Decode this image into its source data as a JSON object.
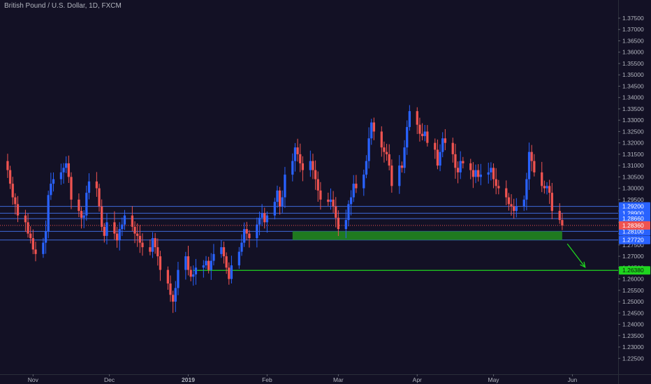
{
  "chart_data": {
    "type": "candlestick",
    "title": "British Pound / U.S. Dollar, 1D, FXCM",
    "ylim": [
      1.218,
      1.383
    ],
    "y_ticks": [
      "1.22500",
      "1.23000",
      "1.23500",
      "1.24000",
      "1.24500",
      "1.25000",
      "1.25500",
      "1.26000",
      "1.26500",
      "1.27000",
      "1.27500",
      "1.28000",
      "1.28500",
      "1.29000",
      "1.29500",
      "1.30000",
      "1.30500",
      "1.31000",
      "1.31500",
      "1.32000",
      "1.32500",
      "1.33000",
      "1.33500",
      "1.34000",
      "1.34500",
      "1.35000",
      "1.35500",
      "1.36000",
      "1.36500",
      "1.37000",
      "1.37500"
    ],
    "x_tick_labels": [
      {
        "label": "Nov",
        "date": "2018-11-01"
      },
      {
        "label": "Dec",
        "date": "2018-12-01"
      },
      {
        "label": "2019",
        "date": "2019-01-01"
      },
      {
        "label": "Feb",
        "date": "2019-02-01"
      },
      {
        "label": "Mar",
        "date": "2019-03-01"
      },
      {
        "label": "Apr",
        "date": "2019-04-01"
      },
      {
        "label": "May",
        "date": "2019-05-01"
      },
      {
        "label": "Jun",
        "date": "2019-06-01"
      }
    ],
    "x_range": [
      "2018-10-19",
      "2019-06-19"
    ],
    "grid": false,
    "series_close": [
      1.308,
      1.302,
      1.296,
      1.293,
      1.288,
      1.285,
      1.28,
      1.278,
      1.273,
      1.271,
      1.276,
      1.281,
      1.297,
      1.302,
      1.304,
      1.307,
      1.309,
      1.311,
      1.305,
      1.295,
      1.29,
      1.287,
      1.288,
      1.298,
      1.303,
      1.3,
      1.292,
      1.283,
      1.279,
      1.285,
      1.28,
      1.277,
      1.282,
      1.284,
      1.288,
      1.283,
      1.28,
      1.279,
      1.276,
      1.274,
      1.272,
      1.278,
      1.274,
      1.27,
      1.264,
      1.258,
      1.253,
      1.25,
      1.256,
      1.264,
      1.27,
      1.264,
      1.261,
      1.262,
      1.265,
      1.266,
      1.268,
      1.264,
      1.268,
      1.271,
      1.274,
      1.27,
      1.265,
      1.26,
      1.266,
      1.272,
      1.276,
      1.282,
      1.28,
      1.278,
      1.284,
      1.287,
      1.289,
      1.285,
      1.288,
      1.294,
      1.299,
      1.292,
      1.296,
      1.306,
      1.312,
      1.318,
      1.315,
      1.311,
      1.308,
      1.312,
      1.308,
      1.304,
      1.299,
      1.295,
      1.294,
      1.295,
      1.292,
      1.287,
      1.282,
      1.286,
      1.293,
      1.296,
      1.302,
      1.3,
      1.306,
      1.312,
      1.322,
      1.329,
      1.325,
      1.318,
      1.316,
      1.315,
      1.31,
      1.301,
      1.31,
      1.309,
      1.318,
      1.327,
      1.334,
      1.328,
      1.324,
      1.323,
      1.325,
      1.32,
      1.317,
      1.31,
      1.316,
      1.322,
      1.32,
      1.315,
      1.309,
      1.307,
      1.312,
      1.311,
      1.308,
      1.305,
      1.308,
      1.305,
      1.306,
      1.307,
      1.309,
      1.304,
      1.301,
      1.3,
      1.296,
      1.293,
      1.292,
      1.29,
      1.292,
      1.295,
      1.304,
      1.316,
      1.312,
      1.307,
      1.301,
      1.3,
      1.301,
      1.298,
      1.29,
      1.286,
      1.2836
    ],
    "hlines": [
      {
        "price": 1.292,
        "label": "1.29200"
      },
      {
        "price": 1.289,
        "label": "1.28900"
      },
      {
        "price": 1.2866,
        "label": "1.28660"
      },
      {
        "price": 1.281,
        "label": "1.28100"
      },
      {
        "price": 1.2772,
        "label": "1.27720"
      }
    ],
    "last_price": {
      "price": 1.2836,
      "label": "1.28360"
    },
    "target": {
      "price": 1.2638,
      "label": "1.26380"
    },
    "colors": {
      "background": "#131125",
      "up": "#2962ff",
      "down": "#ef5350",
      "hline": "#3f6ad8",
      "zone": "#1f7a1f",
      "target": "#1fd51f",
      "axis_text": "#b2b5be",
      "tag_blue": "#2962ff",
      "tag_red": "#ef5350",
      "tag_green": "#1fd51f"
    }
  }
}
